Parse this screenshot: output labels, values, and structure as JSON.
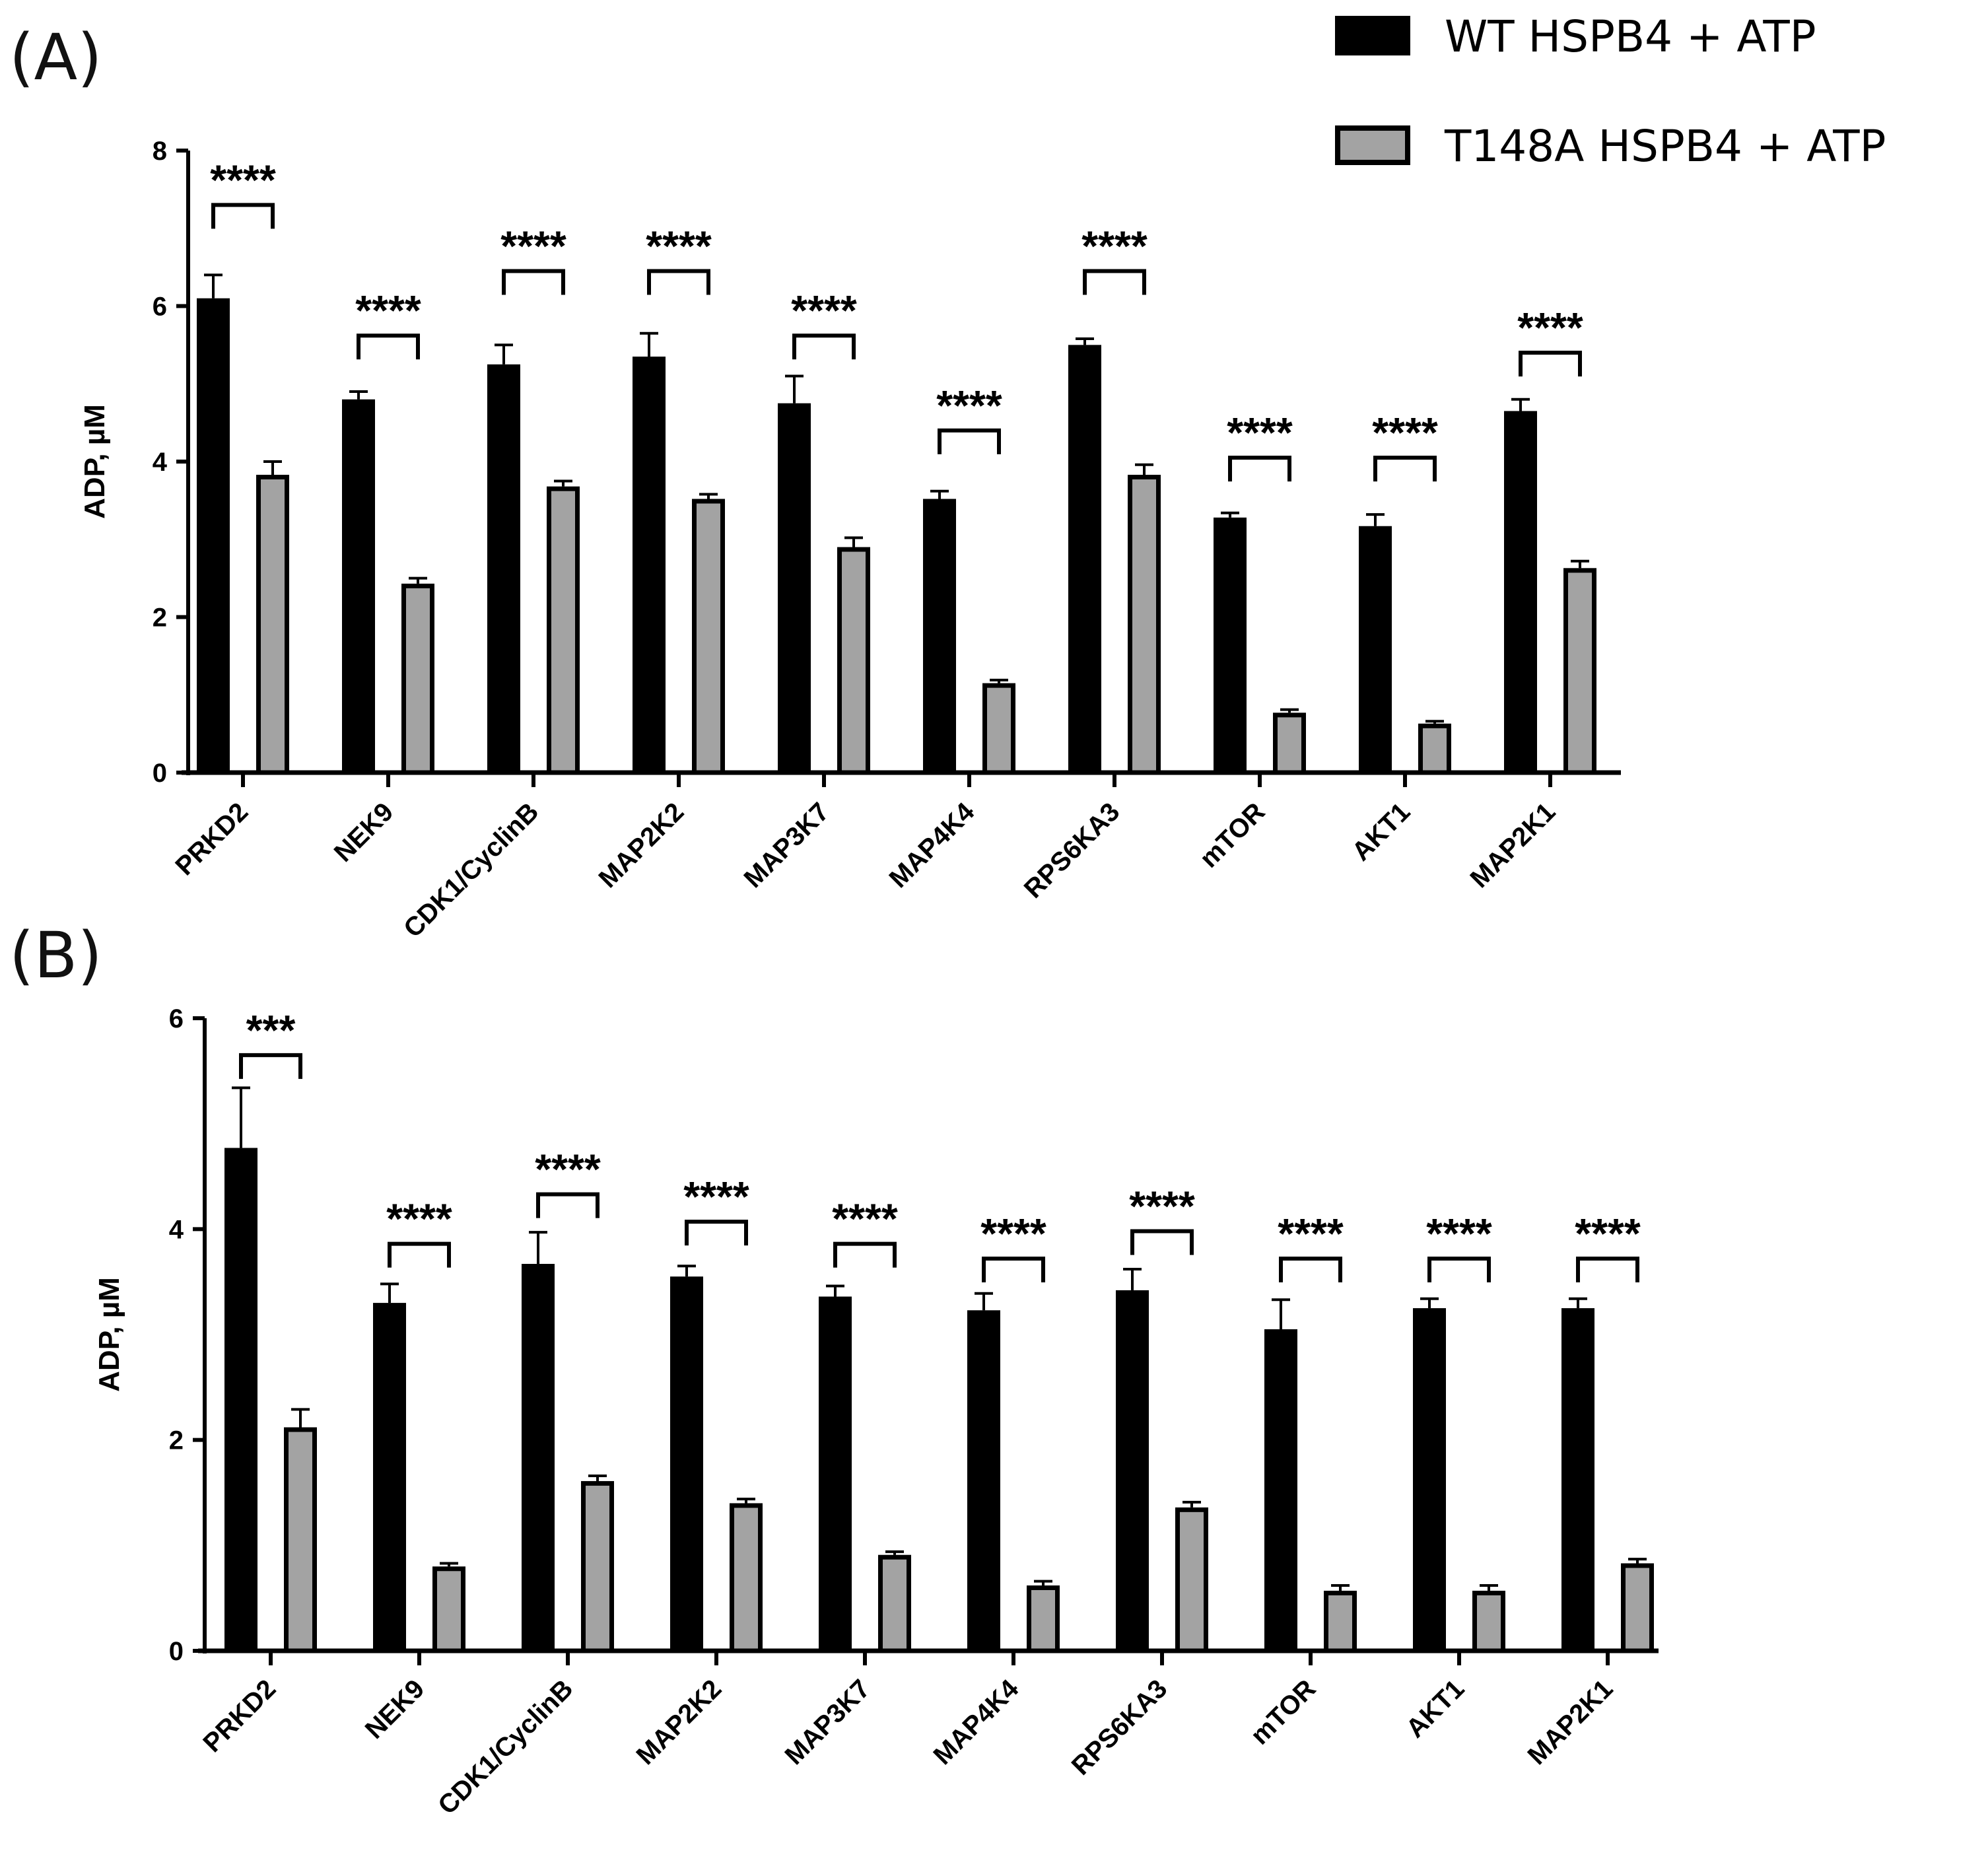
{
  "legend": {
    "series": [
      {
        "name": "WT HSPB4 + ATP",
        "color": "#000000"
      },
      {
        "name": "T148A HSPB4 + ATP",
        "color": "#a3a3a3"
      }
    ]
  },
  "chart_data": [
    {
      "panel": "(A)",
      "type": "bar",
      "ylabel": "ADP, µM",
      "xlabel": "",
      "ylim": [
        0,
        8
      ],
      "yticks": [
        0,
        2,
        4,
        6,
        8
      ],
      "categories": [
        "PRKD2",
        "NEK9",
        "CDK1/CyclinB",
        "MAP2K2",
        "MAP3K7",
        "MAP4K4",
        "RPS6KA3",
        "mTOR",
        "AKT1",
        "MAP2K1"
      ],
      "series": [
        {
          "name": "WT HSPB4 + ATP",
          "color": "#000000",
          "values": [
            6.1,
            4.8,
            5.25,
            5.35,
            4.75,
            3.52,
            5.5,
            3.28,
            3.17,
            4.65
          ],
          "errors": [
            0.3,
            0.1,
            0.25,
            0.3,
            0.35,
            0.1,
            0.08,
            0.06,
            0.15,
            0.15
          ]
        },
        {
          "name": "T148A HSPB4 + ATP",
          "color": "#a3a3a3",
          "values": [
            3.83,
            2.43,
            3.68,
            3.52,
            2.9,
            1.15,
            3.83,
            0.77,
            0.63,
            2.63
          ],
          "errors": [
            0.17,
            0.07,
            0.07,
            0.06,
            0.12,
            0.04,
            0.13,
            0.04,
            0.03,
            0.09
          ]
        }
      ],
      "significance": [
        "****",
        "****",
        "****",
        "****",
        "****",
        "****",
        "****",
        "****",
        "****",
        "****"
      ],
      "sig_bracket_y": [
        7.3,
        5.62,
        6.45,
        6.45,
        5.62,
        4.4,
        6.45,
        4.05,
        4.05,
        5.4
      ]
    },
    {
      "panel": "(B)",
      "type": "bar",
      "ylabel": "ADP, µM",
      "xlabel": "",
      "ylim": [
        0,
        6
      ],
      "yticks": [
        0,
        2,
        4,
        6
      ],
      "categories": [
        "PRKD2",
        "NEK9",
        "CDK1/CyclinB",
        "MAP2K2",
        "MAP3K7",
        "MAP4K4",
        "RPS6KA3",
        "mTOR",
        "AKT1",
        "MAP2K1"
      ],
      "series": [
        {
          "name": "WT HSPB4 + ATP",
          "color": "#000000",
          "values": [
            4.77,
            3.3,
            3.67,
            3.55,
            3.36,
            3.23,
            3.42,
            3.05,
            3.25,
            3.25
          ],
          "errors": [
            0.57,
            0.18,
            0.3,
            0.1,
            0.1,
            0.16,
            0.2,
            0.28,
            0.09,
            0.09
          ]
        },
        {
          "name": "T148A HSPB4 + ATP",
          "color": "#a3a3a3",
          "values": [
            2.12,
            0.8,
            1.61,
            1.4,
            0.91,
            0.62,
            1.36,
            0.57,
            0.57,
            0.83
          ],
          "errors": [
            0.17,
            0.03,
            0.05,
            0.04,
            0.03,
            0.04,
            0.05,
            0.05,
            0.05,
            0.04
          ]
        }
      ],
      "significance": [
        "***",
        "****",
        "****",
        "****",
        "****",
        "****",
        "****",
        "****",
        "****",
        "****"
      ],
      "sig_bracket_y": [
        5.65,
        3.86,
        4.33,
        4.07,
        3.86,
        3.72,
        3.98,
        3.72,
        3.72,
        3.72
      ]
    }
  ]
}
